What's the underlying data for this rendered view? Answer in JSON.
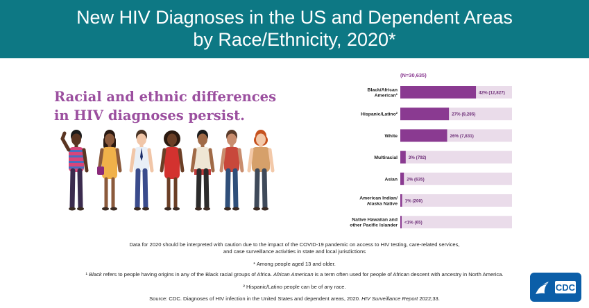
{
  "header": {
    "title_line1": "New HIV Diagnoses in the US and Dependent Areas",
    "title_line2": "by Race/Ethnicity, 2020*"
  },
  "headline": "Racial and ethnic differences in HIV diagnoses persist.",
  "chart_data": {
    "type": "bar",
    "orientation": "horizontal",
    "n_label": "(N=30,635)",
    "xlim": [
      0,
      100
    ],
    "categories": [
      [
        "Black/African",
        "American¹"
      ],
      [
        "Hispanic/Latino²"
      ],
      [
        "White"
      ],
      [
        "Multiracial"
      ],
      [
        "Asian"
      ],
      [
        "American Indian/",
        "Alaska Native"
      ],
      [
        "Native Hawaiian and",
        "other Pacific Islander"
      ]
    ],
    "values": [
      42,
      27,
      26,
      3,
      2,
      1,
      0.2
    ],
    "value_labels": [
      "42% (12,827)",
      "27% (8,285)",
      "26% (7,831)",
      "3% (792)",
      "2% (635)",
      "1% (200)",
      "<1% (65)"
    ],
    "colors": {
      "bar": "#8a3a91",
      "track": "#eadcea",
      "label": "#6e2f78",
      "n_label": "#8a3a91",
      "category": "#1a1a1a"
    }
  },
  "footnotes": {
    "line1a": "Data for 2020 should be interpreted with caution due to the impact of the COVID-19 pandemic on access to HIV testing, care-related services,",
    "line1b": "and case surveillance activities in state and local jurisdictions",
    "star": "* Among people aged 13 and older.",
    "fn1_mark": "¹ ",
    "fn1_italic1": "Black",
    "fn1_mid": " refers to people having origins in any of the Black racial groups of Africa. ",
    "fn1_italic2": "African American",
    "fn1_end": " is a term often used for people of African descent with ancestry in North America.",
    "fn2": "² Hispanic/Latino people can be of any race.",
    "source_pre": "Source: CDC. Diagnoses of HIV infection in the United States and dependent areas, 2020. ",
    "source_italic": "HIV Surveillance Report",
    "source_post": " 2022;33."
  },
  "logo": {
    "text": "CDC"
  },
  "people": {
    "skin": [
      "#5a3522",
      "#8b5a3c",
      "#f1c6a8",
      "#6b3f26",
      "#a06a47",
      "#c98d6e",
      "#f3c9a9"
    ],
    "hair": [
      "#1c1c1c",
      "#2a1a12",
      "#4a3426",
      "#2b1a10",
      "#1b1b1b",
      "#5a3b2a",
      "#c6521f"
    ]
  }
}
